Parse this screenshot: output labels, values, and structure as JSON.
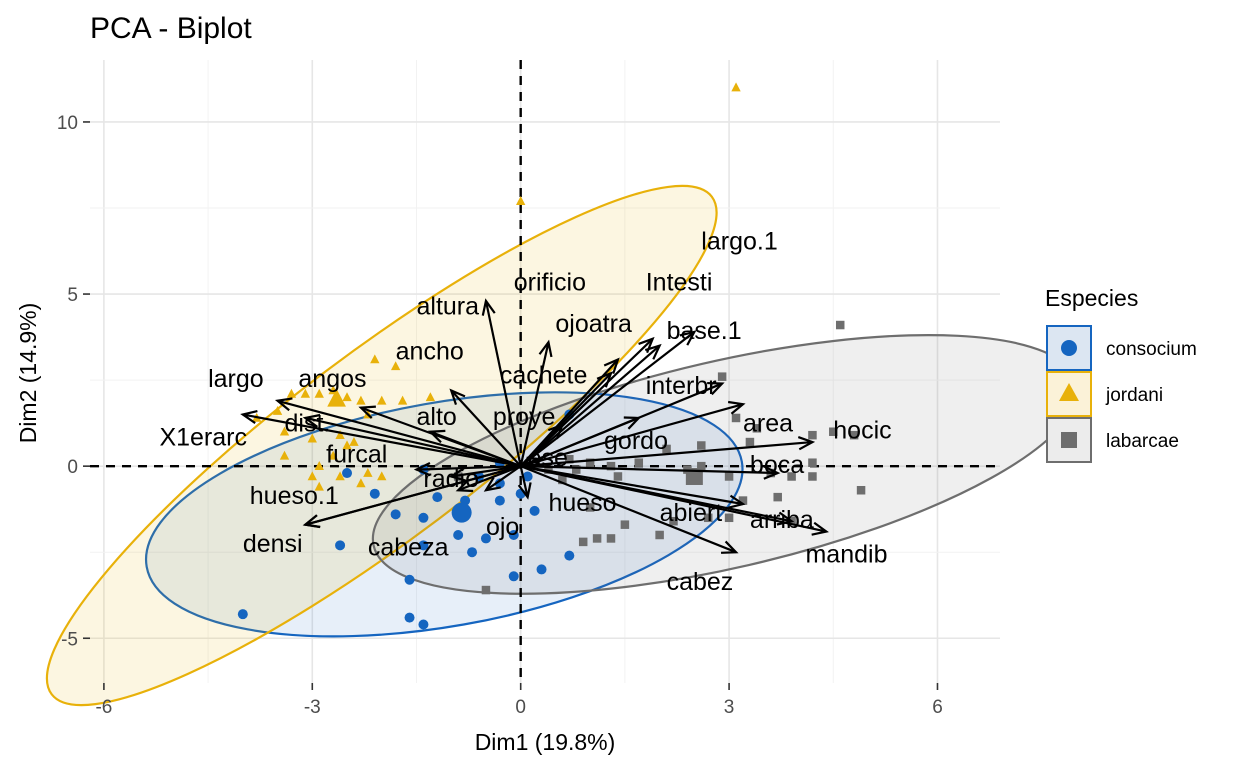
{
  "chart_data": {
    "type": "scatter",
    "title": "PCA - Biplot",
    "xlabel": "Dim1 (19.8%)",
    "ylabel": "Dim2 (14.9%)",
    "xlim": [
      -6.2,
      6.9
    ],
    "ylim": [
      -6.3,
      11.8
    ],
    "x_ticks": [
      -6,
      -3,
      0,
      3,
      6
    ],
    "x_tick_labels": [
      "-6",
      "-3",
      "0",
      "3",
      "6"
    ],
    "y_ticks": [
      -5,
      0,
      5,
      10
    ],
    "y_tick_labels": [
      "-5",
      "0",
      "5",
      "10"
    ],
    "grid": true,
    "legend": {
      "title": "Especies",
      "position": "right",
      "entries": [
        {
          "label": "consocium",
          "color": "#1565c0",
          "shape": "circle"
        },
        {
          "label": "jordani",
          "color": "#e8b10a",
          "shape": "triangle"
        },
        {
          "label": "labarcae",
          "color": "#6e6e6e",
          "shape": "square"
        }
      ]
    },
    "series": [
      {
        "name": "consocium",
        "color": "#1565c0",
        "shape": "circle",
        "centroid": [
          -0.85,
          -1.35
        ],
        "ellipse": {
          "cx": -1.1,
          "cy": -1.4,
          "rx": 4.35,
          "ry": 3.25,
          "angle": 10
        },
        "points": [
          [
            -4.0,
            -4.3
          ],
          [
            -2.6,
            -2.3
          ],
          [
            -1.6,
            -3.3
          ],
          [
            -1.6,
            -4.4
          ],
          [
            -1.4,
            -4.6
          ],
          [
            -1.4,
            -2.3
          ],
          [
            -1.4,
            -1.5
          ],
          [
            -0.9,
            -2.0
          ],
          [
            -0.7,
            -2.5
          ],
          [
            -0.5,
            -2.1
          ],
          [
            -0.8,
            -1.0
          ],
          [
            -0.3,
            -1.0
          ],
          [
            -1.4,
            -0.1
          ],
          [
            -2.5,
            -0.2
          ],
          [
            -1.2,
            -0.9
          ],
          [
            -0.6,
            -0.3
          ],
          [
            -0.3,
            -0.5
          ],
          [
            0.0,
            -0.8
          ],
          [
            0.2,
            -1.3
          ],
          [
            0.3,
            -3.0
          ],
          [
            -0.1,
            -3.2
          ],
          [
            -0.1,
            -2.0
          ],
          [
            0.7,
            -2.6
          ],
          [
            0.7,
            1.5
          ],
          [
            0.1,
            -0.3
          ],
          [
            -1.8,
            -1.4
          ],
          [
            -2.1,
            -0.8
          ],
          [
            -0.3,
            0.1
          ]
        ]
      },
      {
        "name": "jordani",
        "color": "#e8b10a",
        "shape": "triangle",
        "centroid": [
          -2.65,
          1.95
        ],
        "ellipse": {
          "cx": -2.0,
          "cy": 0.6,
          "rx": 5.95,
          "ry": 2.7,
          "angle": 37
        },
        "points": [
          [
            3.1,
            11.0
          ],
          [
            0.0,
            7.7
          ],
          [
            -2.1,
            3.1
          ],
          [
            -1.8,
            2.9
          ],
          [
            -3.8,
            1.4
          ],
          [
            -3.5,
            1.6
          ],
          [
            -3.3,
            2.1
          ],
          [
            -3.1,
            2.1
          ],
          [
            -2.9,
            2.1
          ],
          [
            -2.7,
            2.2
          ],
          [
            -2.5,
            2.0
          ],
          [
            -2.3,
            1.9
          ],
          [
            -2.2,
            1.5
          ],
          [
            -2.0,
            1.9
          ],
          [
            -1.7,
            1.9
          ],
          [
            -1.3,
            2.0
          ],
          [
            -3.4,
            1.0
          ],
          [
            -3.0,
            0.8
          ],
          [
            -2.6,
            0.9
          ],
          [
            -2.5,
            0.6
          ],
          [
            -2.4,
            0.7
          ],
          [
            -2.7,
            0.3
          ],
          [
            -2.9,
            0.0
          ],
          [
            -3.0,
            -0.3
          ],
          [
            -3.4,
            0.3
          ],
          [
            -2.6,
            -0.3
          ],
          [
            -2.3,
            -0.5
          ],
          [
            -2.0,
            -0.3
          ],
          [
            -2.9,
            -0.6
          ],
          [
            -2.2,
            -0.2
          ]
        ]
      },
      {
        "name": "labarcae",
        "color": "#6e6e6e",
        "shape": "square",
        "centroid": [
          2.5,
          -0.3
        ],
        "ellipse": {
          "cx": 2.95,
          "cy": 0.05,
          "rx": 5.2,
          "ry": 3.0,
          "angle": 13
        },
        "points": [
          [
            4.6,
            4.1
          ],
          [
            2.9,
            2.6
          ],
          [
            3.1,
            1.4
          ],
          [
            3.4,
            1.1
          ],
          [
            4.2,
            0.9
          ],
          [
            4.8,
            0.9
          ],
          [
            4.5,
            1.0
          ],
          [
            3.3,
            0.7
          ],
          [
            2.6,
            0.6
          ],
          [
            2.1,
            0.5
          ],
          [
            1.7,
            0.1
          ],
          [
            1.3,
            0.0
          ],
          [
            1.0,
            0.1
          ],
          [
            0.7,
            0.2
          ],
          [
            0.4,
            -0.1
          ],
          [
            0.8,
            -0.1
          ],
          [
            1.4,
            -0.3
          ],
          [
            2.4,
            -0.1
          ],
          [
            2.6,
            0.0
          ],
          [
            3.0,
            -0.3
          ],
          [
            3.6,
            -0.2
          ],
          [
            3.9,
            -0.3
          ],
          [
            4.2,
            -0.3
          ],
          [
            4.2,
            0.1
          ],
          [
            4.9,
            -0.7
          ],
          [
            3.7,
            -0.9
          ],
          [
            3.2,
            -1.0
          ],
          [
            3.0,
            -1.5
          ],
          [
            2.2,
            -1.6
          ],
          [
            1.5,
            -1.7
          ],
          [
            1.1,
            -2.1
          ],
          [
            1.3,
            -2.1
          ],
          [
            0.9,
            -2.2
          ],
          [
            2.0,
            -2.0
          ],
          [
            2.7,
            -1.5
          ],
          [
            3.9,
            -1.6
          ],
          [
            1.0,
            -1.2
          ],
          [
            -0.5,
            -3.6
          ],
          [
            -0.9,
            -0.3
          ],
          [
            0.6,
            -0.4
          ]
        ]
      }
    ],
    "variables": [
      {
        "name": "largo.1",
        "x": 2.5,
        "y": 3.9,
        "label": "largo.1",
        "lx": 2.6,
        "ly": 6.3
      },
      {
        "name": "Intesti",
        "x": 1.9,
        "y": 3.7,
        "label": "Intesti",
        "lx": 1.8,
        "ly": 5.1
      },
      {
        "name": "base.1",
        "x": 2.0,
        "y": 3.5,
        "label": "base.1",
        "lx": 2.1,
        "ly": 3.7
      },
      {
        "name": "ojoatra",
        "x": 1.4,
        "y": 3.1,
        "label": "ojoatra",
        "lx": 0.5,
        "ly": 3.9
      },
      {
        "name": "orificio",
        "x": 0.4,
        "y": 3.6,
        "label": "orificio",
        "lx": -0.1,
        "ly": 5.1
      },
      {
        "name": "cachete",
        "x": 1.3,
        "y": 2.7,
        "label": "cachete",
        "lx": -0.3,
        "ly": 2.4
      },
      {
        "name": "interbr",
        "x": 2.9,
        "y": 2.4,
        "label": "interbr",
        "lx": 1.8,
        "ly": 2.1
      },
      {
        "name": "area",
        "x": 3.2,
        "y": 1.8,
        "label": "area",
        "lx": 3.2,
        "ly": 1.0
      },
      {
        "name": "hocic",
        "x": 4.2,
        "y": 0.7,
        "label": "hocic",
        "lx": 4.5,
        "ly": 0.8
      },
      {
        "name": "gordo",
        "x": 1.7,
        "y": 1.4,
        "label": "gordo",
        "lx": 1.2,
        "ly": 0.5
      },
      {
        "name": "proye",
        "x": 0.6,
        "y": 1.2,
        "label": "proye",
        "lx": -0.4,
        "ly": 1.2
      },
      {
        "name": "boca",
        "x": 3.7,
        "y": -0.2,
        "label": "boca",
        "lx": 3.3,
        "ly": -0.2
      },
      {
        "name": "abiert",
        "x": 3.2,
        "y": -1.1,
        "label": "abiert",
        "lx": 2.0,
        "ly": -1.6
      },
      {
        "name": "arriba",
        "x": 3.9,
        "y": -1.6,
        "label": "arriba",
        "lx": 3.3,
        "ly": -1.8
      },
      {
        "name": "mandib",
        "x": 4.4,
        "y": -1.9,
        "label": "mandib",
        "lx": 4.1,
        "ly": -2.8
      },
      {
        "name": "cabez",
        "x": 3.1,
        "y": -2.5,
        "label": "cabez",
        "lx": 2.1,
        "ly": -3.6
      },
      {
        "name": "hueso",
        "x": 0.1,
        "y": -0.9,
        "label": "hueso",
        "lx": 0.4,
        "ly": -1.3
      },
      {
        "name": "ese",
        "x": 0.3,
        "y": 0.2,
        "label": "ese",
        "lx": 0.1,
        "ly": 0.0
      },
      {
        "name": "ojo",
        "x": -0.5,
        "y": -0.7,
        "label": "ojo",
        "lx": -0.5,
        "ly": -2.0
      },
      {
        "name": "cabeza",
        "x": -0.9,
        "y": -0.7,
        "label": "cabeza",
        "lx": -2.2,
        "ly": -2.6
      },
      {
        "name": "radio",
        "x": -1.0,
        "y": -0.3,
        "label": "radio",
        "lx": -1.4,
        "ly": -0.6
      },
      {
        "name": "furcal",
        "x": -1.5,
        "y": -0.1,
        "label": "furcal",
        "lx": -2.8,
        "ly": 0.1
      },
      {
        "name": "hueso.1",
        "x": -3.1,
        "y": -1.7,
        "label": "hueso.1",
        "lx": -3.9,
        "ly": -1.1
      },
      {
        "name": "densi",
        "x": -3.1,
        "y": -1.7,
        "label": "densi",
        "lx": -4.0,
        "ly": -2.5
      },
      {
        "name": "alto",
        "x": -1.3,
        "y": 1.0,
        "label": "alto",
        "lx": -1.5,
        "ly": 1.2
      },
      {
        "name": "ancho",
        "x": -1.0,
        "y": 2.2,
        "label": "ancho",
        "lx": -1.8,
        "ly": 3.1
      },
      {
        "name": "altura",
        "x": -0.5,
        "y": 4.8,
        "label": "altura",
        "lx": -1.5,
        "ly": 4.4
      },
      {
        "name": "angos",
        "x": -2.3,
        "y": 1.7,
        "label": "angos",
        "lx": -3.2,
        "ly": 2.3
      },
      {
        "name": "largo",
        "x": -3.5,
        "y": 1.9,
        "label": "largo",
        "lx": -4.5,
        "ly": 2.3
      },
      {
        "name": "dist.",
        "x": -3.1,
        "y": 1.4,
        "label": "dist.",
        "lx": -3.4,
        "ly": 1.0
      },
      {
        "name": "X1erarc",
        "x": -4.0,
        "y": 1.5,
        "label": "X1erarc",
        "lx": -5.2,
        "ly": 0.6
      }
    ]
  }
}
